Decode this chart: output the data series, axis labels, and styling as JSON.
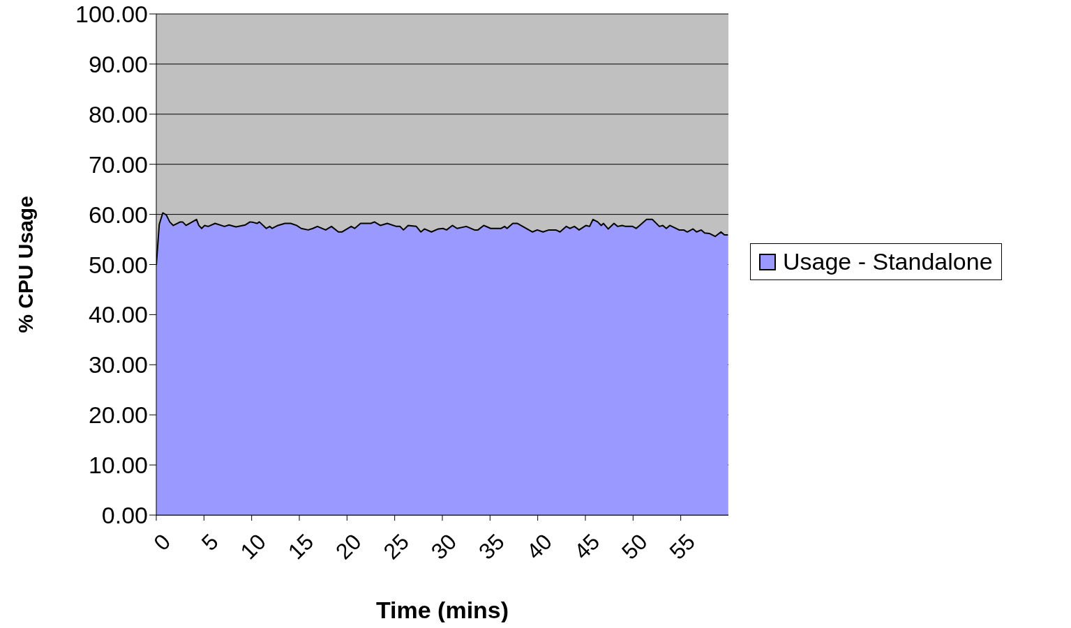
{
  "chart_data": {
    "type": "area",
    "xlabel": "Time (mins)",
    "ylabel": "% CPU Usage",
    "xlim": [
      0,
      60
    ],
    "xticks": [
      0,
      5,
      10,
      15,
      20,
      25,
      30,
      35,
      40,
      45,
      50,
      55
    ],
    "ylim": [
      0,
      100
    ],
    "yticks": [
      {
        "value": 0,
        "label": "0.00"
      },
      {
        "value": 10,
        "label": "10.00"
      },
      {
        "value": 20,
        "label": "20.00"
      },
      {
        "value": 30,
        "label": "30.00"
      },
      {
        "value": 40,
        "label": "40.00"
      },
      {
        "value": 50,
        "label": "50.00"
      },
      {
        "value": 60,
        "label": "60.00"
      },
      {
        "value": 70,
        "label": "70.00"
      },
      {
        "value": 80,
        "label": "80.00"
      },
      {
        "value": 90,
        "label": "90.00"
      },
      {
        "value": 100,
        "label": "100.00"
      }
    ],
    "grid": "y",
    "legend": "right",
    "x": [
      0,
      0.31,
      0.68,
      1.05,
      1.41,
      1.78,
      2.51,
      2.76,
      3.12,
      4.22,
      4.46,
      4.76,
      5.07,
      5.44,
      6.17,
      7.15,
      7.63,
      8.36,
      9.34,
      9.83,
      10.19,
      10.56,
      10.81,
      11.54,
      11.9,
      12.15,
      12.75,
      13.49,
      14.1,
      14.71,
      15.2,
      15.93,
      16.41,
      16.9,
      17.76,
      18.37,
      19.1,
      19.46,
      20.44,
      20.8,
      21.42,
      22.51,
      22.88,
      23.49,
      24.22,
      25.19,
      25.56,
      25.92,
      26.41,
      27.27,
      27.75,
      28.12,
      28.85,
      29.58,
      30.07,
      30.44,
      31.05,
      31.54,
      32.51,
      33.37,
      33.73,
      34.34,
      35.07,
      36.17,
      36.53,
      36.78,
      37.39,
      37.88,
      39.46,
      39.95,
      40.56,
      41.17,
      41.9,
      42.34,
      43.0,
      43.37,
      43.85,
      44.34,
      45.07,
      45.44,
      45.8,
      46.29,
      46.66,
      46.9,
      47.39,
      48.0,
      48.37,
      48.86,
      49.22,
      49.95,
      50.32,
      50.69,
      51.42,
      52.02,
      52.76,
      53.12,
      53.49,
      53.85,
      54.83,
      55.32,
      55.68,
      56.29,
      56.66,
      57.15,
      57.51,
      58.0,
      58.61,
      59.22,
      59.58,
      59.95
    ],
    "series": [
      {
        "name": "Usage - Standalone",
        "color": "#9999ff",
        "values": [
          49.9,
          58.0,
          60.3,
          59.9,
          58.5,
          57.8,
          58.5,
          58.5,
          57.8,
          59.0,
          57.8,
          57.2,
          57.8,
          57.6,
          58.2,
          57.6,
          57.9,
          57.5,
          57.9,
          58.5,
          58.4,
          58.2,
          58.5,
          57.2,
          57.6,
          57.2,
          57.8,
          58.2,
          58.2,
          57.8,
          57.2,
          56.9,
          57.2,
          57.6,
          56.9,
          57.6,
          56.5,
          56.5,
          57.6,
          57.2,
          58.2,
          58.2,
          58.5,
          57.8,
          58.2,
          57.6,
          57.6,
          56.9,
          57.8,
          57.6,
          56.5,
          57.1,
          56.5,
          57.1,
          57.2,
          56.9,
          57.8,
          57.2,
          57.6,
          56.9,
          56.9,
          57.8,
          57.2,
          57.2,
          57.6,
          57.2,
          58.2,
          58.2,
          56.5,
          56.9,
          56.5,
          56.9,
          56.9,
          56.5,
          57.6,
          57.2,
          57.6,
          56.9,
          57.8,
          57.6,
          59.0,
          58.5,
          57.8,
          58.2,
          57.1,
          58.2,
          57.6,
          57.8,
          57.6,
          57.6,
          57.2,
          57.8,
          59.0,
          59.0,
          57.6,
          57.8,
          57.2,
          57.8,
          56.9,
          56.9,
          56.5,
          57.1,
          56.5,
          56.9,
          56.3,
          56.2,
          55.6,
          56.5,
          55.9,
          55.9
        ]
      }
    ]
  }
}
